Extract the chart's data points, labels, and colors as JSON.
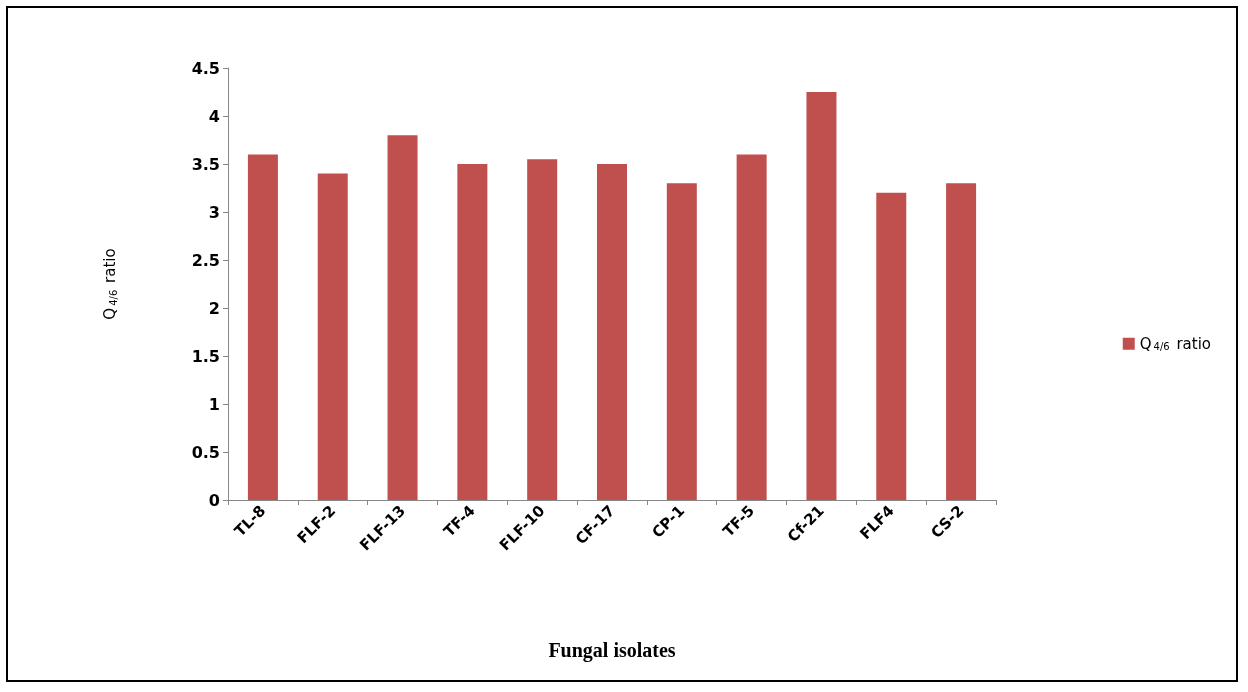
{
  "chart_data": {
    "type": "bar",
    "xlabel": "Fungal isolates",
    "ylabel": "Q$_{4/6}$ ratio",
    "categories": [
      "TL-8",
      "FLF-2",
      "FLF-13",
      "TF-4",
      "FLF-10",
      "CF-17",
      "CP-1",
      "TF-5",
      "Cf-21",
      "FLF4",
      "CS-2"
    ],
    "series": [
      {
        "name": "Q$_{4/6}$ ratio",
        "color": "#c0504d",
        "values": [
          3.6,
          3.4,
          3.8,
          3.5,
          3.55,
          3.5,
          3.3,
          3.6,
          4.25,
          3.2,
          3.3
        ]
      }
    ],
    "ylim": [
      0,
      4.5
    ],
    "yticks": [
      0,
      0.5,
      1,
      1.5,
      2,
      2.5,
      3,
      3.5,
      4,
      4.5
    ],
    "grid": false,
    "legend": "right"
  }
}
